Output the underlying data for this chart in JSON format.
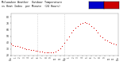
{
  "title_line1": "Milwaukee Weather  Outdoor Temperature",
  "title_line2": "vs Heat Index  per Minute  (24 Hours)",
  "background_color": "#ffffff",
  "plot_bg_color": "#ffffff",
  "dot_color": "#dd0000",
  "legend_colors": [
    "#0000cc",
    "#cc0000"
  ],
  "grid_color": "#bbbbbb",
  "ylim": [
    20,
    85
  ],
  "xlim": [
    0,
    1440
  ],
  "yticks": [
    20,
    30,
    40,
    50,
    60,
    70,
    80
  ],
  "vlines": [
    360,
    720
  ],
  "time_points": [
    0,
    30,
    60,
    90,
    120,
    150,
    180,
    210,
    240,
    270,
    300,
    330,
    360,
    390,
    420,
    450,
    480,
    510,
    540,
    570,
    600,
    630,
    660,
    690,
    720,
    750,
    780,
    810,
    840,
    870,
    900,
    930,
    960,
    990,
    1020,
    1050,
    1080,
    1110,
    1140,
    1170,
    1200,
    1230,
    1260,
    1290,
    1320,
    1350,
    1380,
    1410
  ],
  "temp_values": [
    38,
    36,
    35,
    34,
    33,
    32,
    31,
    30,
    29,
    28,
    28,
    27,
    27,
    26,
    26,
    25,
    25,
    24,
    24,
    25,
    26,
    28,
    31,
    35,
    40,
    45,
    50,
    55,
    59,
    63,
    66,
    69,
    71,
    72,
    71,
    69,
    66,
    63,
    59,
    55,
    51,
    48,
    45,
    43,
    41,
    40,
    38,
    37
  ],
  "xtick_positions": [
    0,
    60,
    120,
    180,
    240,
    300,
    360,
    420,
    480,
    540,
    600,
    660,
    720,
    780,
    840,
    900,
    960,
    1020,
    1080,
    1140,
    1200,
    1260,
    1320,
    1380,
    1440
  ],
  "xtick_labels": [
    "12a",
    "1",
    "2",
    "3",
    "4",
    "5",
    "6",
    "7",
    "8",
    "9",
    "10",
    "11",
    "12p",
    "1",
    "2",
    "3",
    "4",
    "5",
    "6",
    "7",
    "8",
    "9",
    "10",
    "11",
    "12a"
  ]
}
